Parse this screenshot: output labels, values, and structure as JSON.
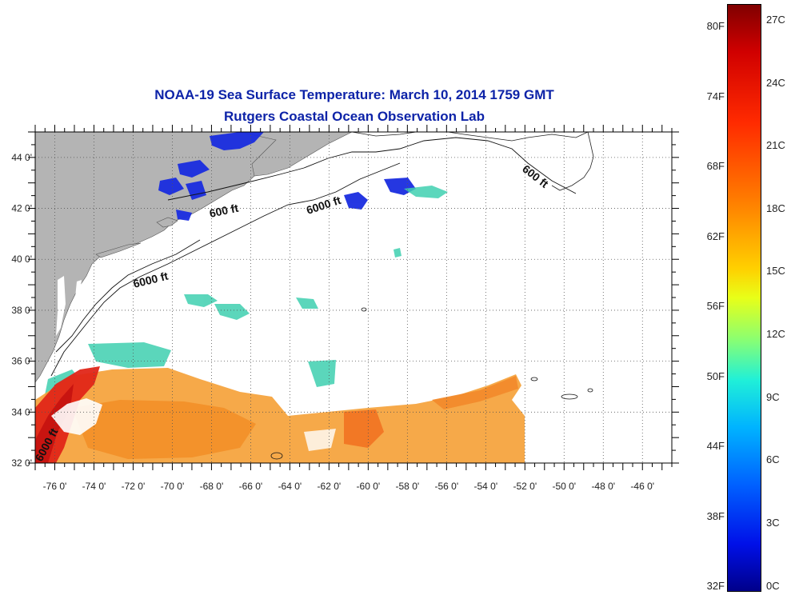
{
  "title": {
    "line1": "NOAA-19 Sea Surface Temperature:  March 10, 2014 1759 GMT",
    "line2": "Rutgers Coastal Ocean Observation Lab"
  },
  "map": {
    "lon_range": [
      -77,
      -44.5
    ],
    "lat_range": [
      32,
      45
    ],
    "lon_ticks": [
      {
        "value": -76,
        "label": "-76 0'"
      },
      {
        "value": -74,
        "label": "-74 0'"
      },
      {
        "value": -72,
        "label": "-72 0'"
      },
      {
        "value": -70,
        "label": "-70 0'"
      },
      {
        "value": -68,
        "label": "-68 0'"
      },
      {
        "value": -66,
        "label": "-66 0'"
      },
      {
        "value": -64,
        "label": "-64 0'"
      },
      {
        "value": -62,
        "label": "-62 0'"
      },
      {
        "value": -60,
        "label": "-60 0'"
      },
      {
        "value": -58,
        "label": "-58 0'"
      },
      {
        "value": -56,
        "label": "-56 0'"
      },
      {
        "value": -54,
        "label": "-54 0'"
      },
      {
        "value": -52,
        "label": "-52 0'"
      },
      {
        "value": -50,
        "label": "-50 0'"
      },
      {
        "value": -48,
        "label": "-48 0'"
      },
      {
        "value": -46,
        "label": "-46 0'"
      }
    ],
    "lat_ticks": [
      {
        "value": 44,
        "label": "44 0'"
      },
      {
        "value": 42,
        "label": "42 0'"
      },
      {
        "value": 40,
        "label": "40 0'"
      },
      {
        "value": 38,
        "label": "38 0'"
      },
      {
        "value": 36,
        "label": "36 0'"
      },
      {
        "value": 34,
        "label": "34 0'"
      },
      {
        "value": 32,
        "label": "32 0'"
      }
    ],
    "contour_labels": [
      {
        "text": "600 ft"
      },
      {
        "text": "6000 ft"
      },
      {
        "text": "6000 ft"
      },
      {
        "text": "600 ft"
      },
      {
        "text": "6000 ft"
      }
    ],
    "land_color": "#b4b4b4",
    "grid": "dotted"
  },
  "colorbar": {
    "fahrenheit_labels": [
      "80F",
      "74F",
      "68F",
      "62F",
      "56F",
      "50F",
      "44F",
      "38F",
      "32F"
    ],
    "celsius_labels": [
      "27C",
      "24C",
      "21C",
      "18C",
      "15C",
      "12C",
      "9C",
      "6C",
      "3C",
      "0C"
    ],
    "scale": "jet",
    "range_c": [
      0,
      28
    ]
  }
}
